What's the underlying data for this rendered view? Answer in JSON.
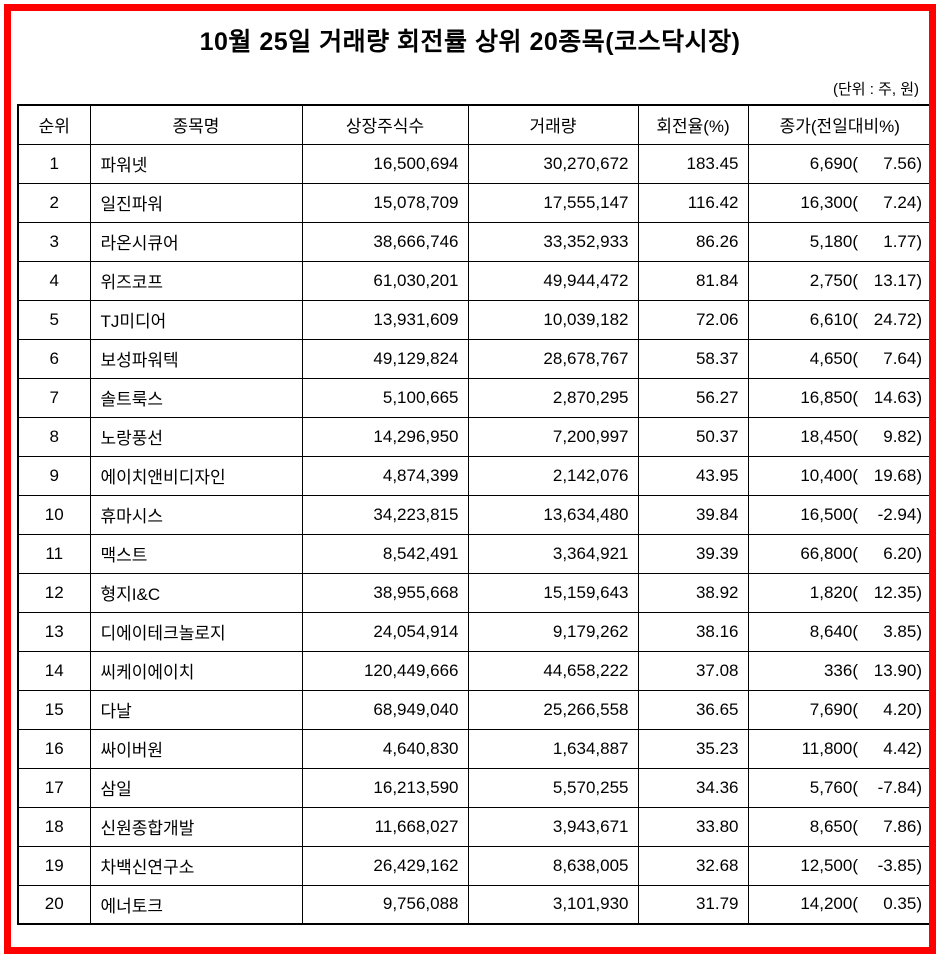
{
  "title": "10월 25일 거래량 회전률 상위 20종목(코스닥시장)",
  "unit_note": "(단위 : 주, 원)",
  "table": {
    "columns": [
      "순위",
      "종목명",
      "상장주식수",
      "거래량",
      "회전율(%)",
      "종가(전일대비%)"
    ],
    "rows": [
      {
        "rank": "1",
        "name": "파워넷",
        "shares": "16,500,694",
        "volume": "30,270,672",
        "turnover": "183.45",
        "close": "6,690(",
        "change": "7.56)"
      },
      {
        "rank": "2",
        "name": "일진파워",
        "shares": "15,078,709",
        "volume": "17,555,147",
        "turnover": "116.42",
        "close": "16,300(",
        "change": "7.24)"
      },
      {
        "rank": "3",
        "name": "라온시큐어",
        "shares": "38,666,746",
        "volume": "33,352,933",
        "turnover": "86.26",
        "close": "5,180(",
        "change": "1.77)"
      },
      {
        "rank": "4",
        "name": "위즈코프",
        "shares": "61,030,201",
        "volume": "49,944,472",
        "turnover": "81.84",
        "close": "2,750(",
        "change": "13.17)"
      },
      {
        "rank": "5",
        "name": "TJ미디어",
        "shares": "13,931,609",
        "volume": "10,039,182",
        "turnover": "72.06",
        "close": "6,610(",
        "change": "24.72)"
      },
      {
        "rank": "6",
        "name": "보성파워텍",
        "shares": "49,129,824",
        "volume": "28,678,767",
        "turnover": "58.37",
        "close": "4,650(",
        "change": "7.64)"
      },
      {
        "rank": "7",
        "name": "솔트룩스",
        "shares": "5,100,665",
        "volume": "2,870,295",
        "turnover": "56.27",
        "close": "16,850(",
        "change": "14.63)"
      },
      {
        "rank": "8",
        "name": "노랑풍선",
        "shares": "14,296,950",
        "volume": "7,200,997",
        "turnover": "50.37",
        "close": "18,450(",
        "change": "9.82)"
      },
      {
        "rank": "9",
        "name": "에이치앤비디자인",
        "shares": "4,874,399",
        "volume": "2,142,076",
        "turnover": "43.95",
        "close": "10,400(",
        "change": "19.68)"
      },
      {
        "rank": "10",
        "name": "휴마시스",
        "shares": "34,223,815",
        "volume": "13,634,480",
        "turnover": "39.84",
        "close": "16,500(",
        "change": "-2.94)"
      },
      {
        "rank": "11",
        "name": "맥스트",
        "shares": "8,542,491",
        "volume": "3,364,921",
        "turnover": "39.39",
        "close": "66,800(",
        "change": "6.20)"
      },
      {
        "rank": "12",
        "name": "형지I&C",
        "shares": "38,955,668",
        "volume": "15,159,643",
        "turnover": "38.92",
        "close": "1,820(",
        "change": "12.35)"
      },
      {
        "rank": "13",
        "name": "디에이테크놀로지",
        "shares": "24,054,914",
        "volume": "9,179,262",
        "turnover": "38.16",
        "close": "8,640(",
        "change": "3.85)"
      },
      {
        "rank": "14",
        "name": "씨케이에이치",
        "shares": "120,449,666",
        "volume": "44,658,222",
        "turnover": "37.08",
        "close": "336(",
        "change": "13.90)"
      },
      {
        "rank": "15",
        "name": "다날",
        "shares": "68,949,040",
        "volume": "25,266,558",
        "turnover": "36.65",
        "close": "7,690(",
        "change": "4.20)"
      },
      {
        "rank": "16",
        "name": "싸이버원",
        "shares": "4,640,830",
        "volume": "1,634,887",
        "turnover": "35.23",
        "close": "11,800(",
        "change": "4.42)"
      },
      {
        "rank": "17",
        "name": "삼일",
        "shares": "16,213,590",
        "volume": "5,570,255",
        "turnover": "34.36",
        "close": "5,760(",
        "change": "-7.84)"
      },
      {
        "rank": "18",
        "name": "신원종합개발",
        "shares": "11,668,027",
        "volume": "3,943,671",
        "turnover": "33.80",
        "close": "8,650(",
        "change": "7.86)"
      },
      {
        "rank": "19",
        "name": "차백신연구소",
        "shares": "26,429,162",
        "volume": "8,638,005",
        "turnover": "32.68",
        "close": "12,500(",
        "change": "-3.85)"
      },
      {
        "rank": "20",
        "name": "에너토크",
        "shares": "9,756,088",
        "volume": "3,101,930",
        "turnover": "31.79",
        "close": "14,200(",
        "change": "0.35)"
      }
    ]
  }
}
